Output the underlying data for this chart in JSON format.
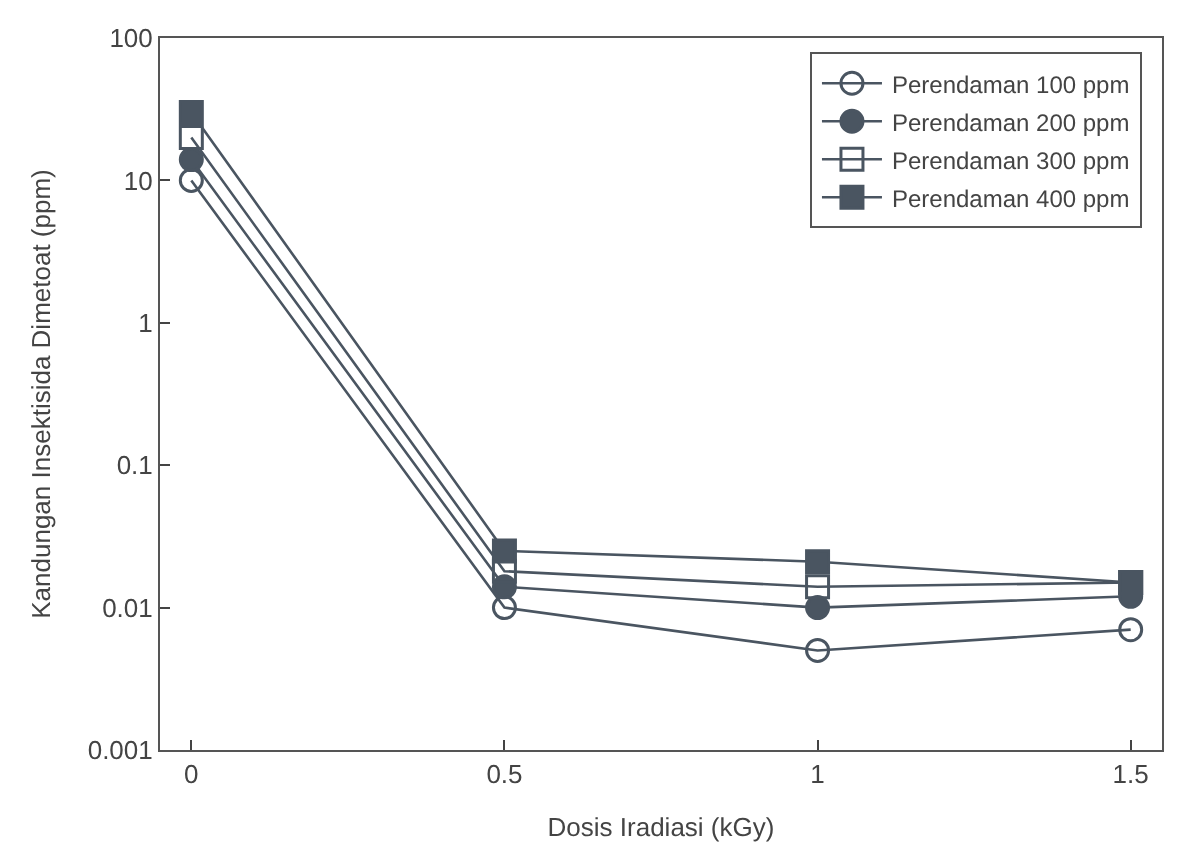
{
  "chart_data": {
    "type": "line",
    "xlabel": "Dosis Iradiasi (kGy)",
    "ylabel": "Kandungan Insektisida Dimetoat (ppm)",
    "x": [
      0,
      0.5,
      1,
      1.5
    ],
    "xlim": [
      -0.05,
      1.55
    ],
    "xticks": [
      0,
      0.5,
      1,
      1.5
    ],
    "ylim": [
      0.001,
      100
    ],
    "yticks": [
      0.001,
      0.01,
      0.1,
      1,
      10,
      100
    ],
    "log": true,
    "legend": "top right",
    "series": [
      {
        "name": "Perendaman 100 ppm",
        "color": "#4a5561",
        "marker": "circle-open",
        "values": [
          10,
          0.01,
          0.005,
          0.007
        ]
      },
      {
        "name": "Perendaman 200 ppm",
        "color": "#4a5561",
        "marker": "circle",
        "values": [
          14,
          0.014,
          0.01,
          0.012
        ]
      },
      {
        "name": "Perendaman 300 ppm",
        "color": "#4a5561",
        "marker": "square-open",
        "values": [
          20,
          0.018,
          0.014,
          0.015
        ]
      },
      {
        "name": "Perendaman 400 ppm",
        "color": "#4a5561",
        "marker": "square",
        "values": [
          30,
          0.025,
          0.021,
          0.015
        ]
      }
    ]
  }
}
